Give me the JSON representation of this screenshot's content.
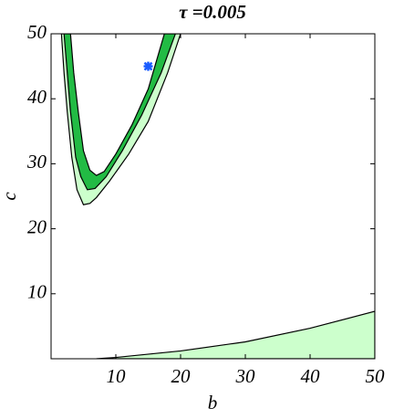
{
  "chart_data": {
    "type": "contour",
    "title": "τ =0.005",
    "xlabel": "b",
    "ylabel": "c",
    "xlim": [
      0,
      50
    ],
    "ylim": [
      0,
      50
    ],
    "xticks": [
      10,
      20,
      30,
      40,
      50
    ],
    "yticks": [
      10,
      20,
      30,
      40,
      50
    ],
    "regions": [
      {
        "color": "#ccffcc",
        "x": [
          1.6,
          2,
          2.5,
          3.2,
          4,
          5,
          6,
          7,
          9,
          12,
          15,
          18,
          20
        ],
        "y": [
          50,
          44,
          38,
          31,
          26,
          23.7,
          23.9,
          24.8,
          27.3,
          31.5,
          36.5,
          44,
          50
        ]
      },
      {
        "color": "#22bb44",
        "x": [
          2,
          2.5,
          3,
          3.8,
          4.6,
          5.6,
          6.8,
          8.5,
          11,
          14,
          17,
          19.2
        ],
        "y": [
          50,
          44,
          38,
          31,
          28,
          26,
          26.2,
          28,
          32,
          37.5,
          44,
          50
        ]
      },
      {
        "color": "#ffffff",
        "x": [
          3,
          3.5,
          4.2,
          5,
          6,
          7,
          8.2,
          10,
          12.5,
          15,
          17.5
        ],
        "y": [
          50,
          44,
          38,
          32,
          29,
          28.2,
          28.8,
          31.5,
          36,
          41.5,
          50
        ]
      },
      {
        "color": "#ccffcc",
        "x": [
          7,
          10,
          20,
          30,
          40,
          50,
          50
        ],
        "y": [
          0,
          0.2,
          1.2,
          2.6,
          4.7,
          7.3,
          0
        ]
      }
    ],
    "marker": {
      "x": 15,
      "y": 45,
      "color": "#1a5cff"
    }
  }
}
